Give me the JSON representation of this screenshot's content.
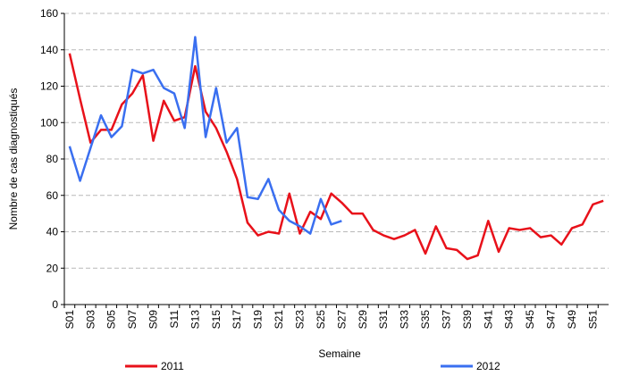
{
  "chart_data": {
    "type": "line",
    "x_label": "Semaine",
    "y_label": "Nombre de cas diagnostiqués",
    "categories": [
      "S01",
      null,
      "S03",
      null,
      "S05",
      null,
      "S07",
      null,
      "S09",
      null,
      "S11",
      null,
      "S13",
      null,
      "S15",
      null,
      "S17",
      null,
      "S19",
      null,
      "S21",
      null,
      "S23",
      null,
      "S25",
      null,
      "S27",
      null,
      "S29",
      null,
      "S31",
      null,
      "S33",
      null,
      "S35",
      null,
      "S37",
      null,
      "S39",
      null,
      "S41",
      null,
      "S43",
      null,
      "S45",
      null,
      "S47",
      null,
      "S49",
      null,
      "S51",
      null
    ],
    "series": [
      {
        "name": "2011",
        "color": "#e8111a",
        "values": [
          138,
          113,
          89,
          96,
          96,
          110,
          116,
          126,
          90,
          112,
          101,
          103,
          131,
          106,
          97,
          84,
          69,
          45,
          38,
          40,
          39,
          61,
          39,
          51,
          47,
          61,
          56,
          50,
          50,
          41,
          38,
          36,
          38,
          41,
          28,
          43,
          31,
          30,
          25,
          27,
          46,
          29,
          42,
          41,
          42,
          37,
          38,
          33,
          42,
          44,
          55,
          57
        ]
      },
      {
        "name": "2012",
        "color": "#3a6ff0",
        "values": [
          87,
          68,
          86,
          104,
          92,
          98,
          129,
          127,
          129,
          119,
          116,
          97,
          147,
          92,
          119,
          89,
          97,
          59,
          58,
          69,
          52,
          46,
          43,
          39,
          58,
          44,
          46,
          null,
          null,
          null,
          null,
          null,
          null,
          null,
          null,
          null,
          null,
          null,
          null,
          null,
          null,
          null,
          null,
          null,
          null,
          null,
          null,
          null,
          null,
          null,
          null,
          null
        ]
      }
    ],
    "ylim": [
      0,
      160
    ],
    "yticks": [
      0,
      20,
      40,
      60,
      80,
      100,
      120,
      140,
      160
    ],
    "grid": true,
    "legend": "bottom"
  }
}
